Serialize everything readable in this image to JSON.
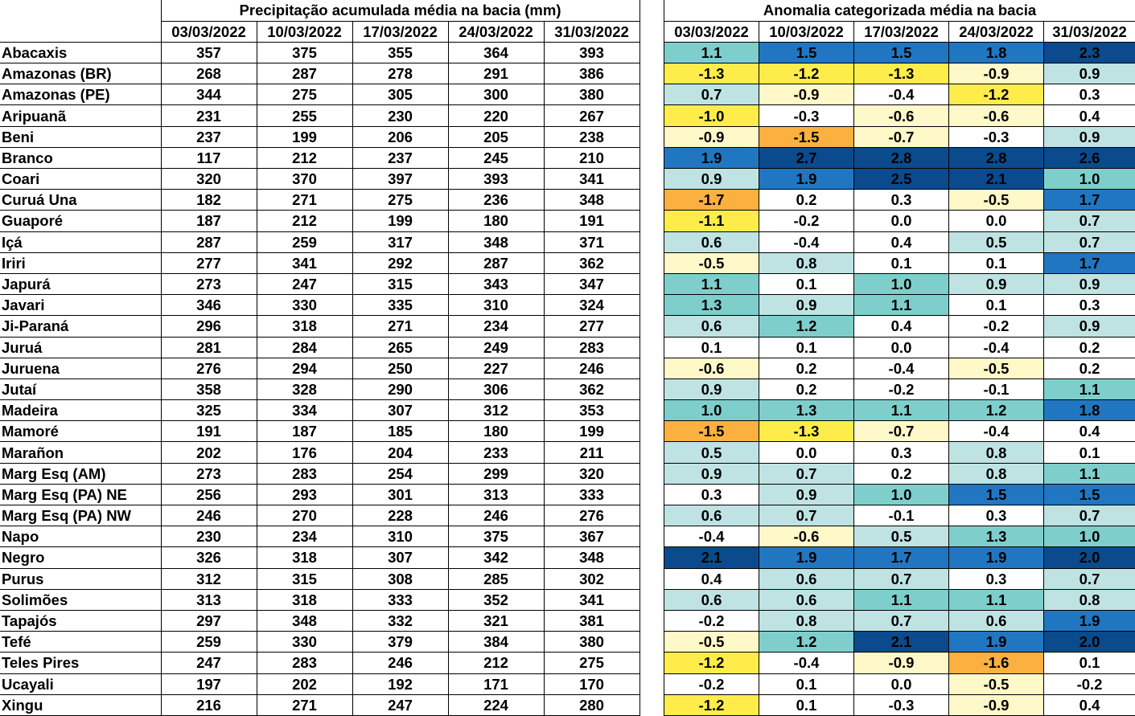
{
  "precip": {
    "title": "Precipitação acumulada média na bacia (mm)",
    "dates": [
      "03/03/2022",
      "10/03/2022",
      "17/03/2022",
      "24/03/2022",
      "31/03/2022"
    ]
  },
  "anomaly": {
    "title": "Anomalia categorizada média na bacia",
    "dates": [
      "03/03/2022",
      "10/03/2022",
      "17/03/2022",
      "24/03/2022",
      "31/03/2022"
    ]
  },
  "palette": {
    "-2": "#fbb040",
    "-1": "#fdec4a",
    "-0.5": "#fff8c8",
    "0": "#ffffff",
    "0.5": "#bfe3e3",
    "1": "#7ecfcc",
    "1.5": "#2176c1",
    "2": "#0b4a8c"
  },
  "rows": [
    {
      "name": "Abacaxis",
      "precip": [
        "357",
        "375",
        "355",
        "364",
        "393"
      ],
      "anom": [
        "1.1",
        "1.5",
        "1.5",
        "1.8",
        "2.3"
      ]
    },
    {
      "name": "Amazonas (BR)",
      "precip": [
        "268",
        "287",
        "278",
        "291",
        "386"
      ],
      "anom": [
        "-1.3",
        "-1.2",
        "-1.3",
        "-0.9",
        "0.9"
      ]
    },
    {
      "name": "Amazonas (PE)",
      "precip": [
        "344",
        "275",
        "305",
        "300",
        "380"
      ],
      "anom": [
        "0.7",
        "-0.9",
        "-0.4",
        "-1.2",
        "0.3"
      ]
    },
    {
      "name": "Aripuanã",
      "precip": [
        "231",
        "255",
        "230",
        "220",
        "267"
      ],
      "anom": [
        "-1.0",
        "-0.3",
        "-0.6",
        "-0.6",
        "0.4"
      ]
    },
    {
      "name": "Beni",
      "precip": [
        "237",
        "199",
        "206",
        "205",
        "238"
      ],
      "anom": [
        "-0.9",
        "-1.5",
        "-0.7",
        "-0.3",
        "0.9"
      ]
    },
    {
      "name": "Branco",
      "precip": [
        "117",
        "212",
        "237",
        "245",
        "210"
      ],
      "anom": [
        "1.9",
        "2.7",
        "2.8",
        "2.8",
        "2.6"
      ]
    },
    {
      "name": "Coari",
      "precip": [
        "320",
        "370",
        "397",
        "393",
        "341"
      ],
      "anom": [
        "0.9",
        "1.9",
        "2.5",
        "2.1",
        "1.0"
      ]
    },
    {
      "name": "Curuá Una",
      "precip": [
        "182",
        "271",
        "275",
        "236",
        "348"
      ],
      "anom": [
        "-1.7",
        "0.2",
        "0.3",
        "-0.5",
        "1.7"
      ]
    },
    {
      "name": "Guaporé",
      "precip": [
        "187",
        "212",
        "199",
        "180",
        "191"
      ],
      "anom": [
        "-1.1",
        "-0.2",
        "0.0",
        "0.0",
        "0.7"
      ]
    },
    {
      "name": "Içá",
      "precip": [
        "287",
        "259",
        "317",
        "348",
        "371"
      ],
      "anom": [
        "0.6",
        "-0.4",
        "0.4",
        "0.5",
        "0.7"
      ]
    },
    {
      "name": "Iriri",
      "precip": [
        "277",
        "341",
        "292",
        "287",
        "362"
      ],
      "anom": [
        "-0.5",
        "0.8",
        "0.1",
        "0.1",
        "1.7"
      ]
    },
    {
      "name": "Japurá",
      "precip": [
        "273",
        "247",
        "315",
        "343",
        "347"
      ],
      "anom": [
        "1.1",
        "0.1",
        "1.0",
        "0.9",
        "0.9"
      ]
    },
    {
      "name": "Javari",
      "precip": [
        "346",
        "330",
        "335",
        "310",
        "324"
      ],
      "anom": [
        "1.3",
        "0.9",
        "1.1",
        "0.1",
        "0.3"
      ]
    },
    {
      "name": "Ji-Paraná",
      "precip": [
        "296",
        "318",
        "271",
        "234",
        "277"
      ],
      "anom": [
        "0.6",
        "1.2",
        "0.4",
        "-0.2",
        "0.9"
      ]
    },
    {
      "name": "Juruá",
      "precip": [
        "281",
        "284",
        "265",
        "249",
        "283"
      ],
      "anom": [
        "0.1",
        "0.1",
        "0.0",
        "-0.4",
        "0.2"
      ]
    },
    {
      "name": "Juruena",
      "precip": [
        "276",
        "294",
        "250",
        "227",
        "246"
      ],
      "anom": [
        "-0.6",
        "0.2",
        "-0.4",
        "-0.5",
        "0.2"
      ]
    },
    {
      "name": "Jutaí",
      "precip": [
        "358",
        "328",
        "290",
        "306",
        "362"
      ],
      "anom": [
        "0.9",
        "0.2",
        "-0.2",
        "-0.1",
        "1.1"
      ]
    },
    {
      "name": "Madeira",
      "precip": [
        "325",
        "334",
        "307",
        "312",
        "353"
      ],
      "anom": [
        "1.0",
        "1.3",
        "1.1",
        "1.2",
        "1.8"
      ]
    },
    {
      "name": "Mamoré",
      "precip": [
        "191",
        "187",
        "185",
        "180",
        "199"
      ],
      "anom": [
        "-1.5",
        "-1.3",
        "-0.7",
        "-0.4",
        "0.4"
      ]
    },
    {
      "name": "Marañon",
      "precip": [
        "202",
        "176",
        "204",
        "233",
        "211"
      ],
      "anom": [
        "0.5",
        "0.0",
        "0.3",
        "0.8",
        "0.1"
      ]
    },
    {
      "name": "Marg Esq (AM)",
      "precip": [
        "273",
        "283",
        "254",
        "299",
        "320"
      ],
      "anom": [
        "0.9",
        "0.7",
        "0.2",
        "0.8",
        "1.1"
      ]
    },
    {
      "name": "Marg Esq (PA) NE",
      "precip": [
        "256",
        "293",
        "301",
        "313",
        "333"
      ],
      "anom": [
        "0.3",
        "0.9",
        "1.0",
        "1.5",
        "1.5"
      ]
    },
    {
      "name": "Marg Esq (PA) NW",
      "precip": [
        "246",
        "270",
        "228",
        "246",
        "276"
      ],
      "anom": [
        "0.6",
        "0.7",
        "-0.1",
        "0.3",
        "0.7"
      ]
    },
    {
      "name": "Napo",
      "precip": [
        "230",
        "234",
        "310",
        "375",
        "367"
      ],
      "anom": [
        "-0.4",
        "-0.6",
        "0.5",
        "1.3",
        "1.0"
      ]
    },
    {
      "name": "Negro",
      "precip": [
        "326",
        "318",
        "307",
        "342",
        "348"
      ],
      "anom": [
        "2.1",
        "1.9",
        "1.7",
        "1.9",
        "2.0"
      ]
    },
    {
      "name": "Purus",
      "precip": [
        "312",
        "315",
        "308",
        "285",
        "302"
      ],
      "anom": [
        "0.4",
        "0.6",
        "0.7",
        "0.3",
        "0.7"
      ]
    },
    {
      "name": "Solimões",
      "precip": [
        "313",
        "318",
        "333",
        "352",
        "341"
      ],
      "anom": [
        "0.6",
        "0.6",
        "1.1",
        "1.1",
        "0.8"
      ]
    },
    {
      "name": "Tapajós",
      "precip": [
        "297",
        "348",
        "332",
        "321",
        "381"
      ],
      "anom": [
        "-0.2",
        "0.8",
        "0.7",
        "0.6",
        "1.9"
      ]
    },
    {
      "name": "Tefé",
      "precip": [
        "259",
        "330",
        "379",
        "384",
        "380"
      ],
      "anom": [
        "-0.5",
        "1.2",
        "2.1",
        "1.9",
        "2.0"
      ]
    },
    {
      "name": "Teles Pires",
      "precip": [
        "247",
        "283",
        "246",
        "212",
        "275"
      ],
      "anom": [
        "-1.2",
        "-0.4",
        "-0.9",
        "-1.6",
        "0.1"
      ]
    },
    {
      "name": "Ucayali",
      "precip": [
        "197",
        "202",
        "192",
        "171",
        "170"
      ],
      "anom": [
        "-0.2",
        "0.1",
        "0.0",
        "-0.5",
        "-0.2"
      ]
    },
    {
      "name": "Xingu",
      "precip": [
        "216",
        "271",
        "247",
        "224",
        "280"
      ],
      "anom": [
        "-1.2",
        "0.1",
        "-0.3",
        "-0.9",
        "0.4"
      ]
    }
  ]
}
